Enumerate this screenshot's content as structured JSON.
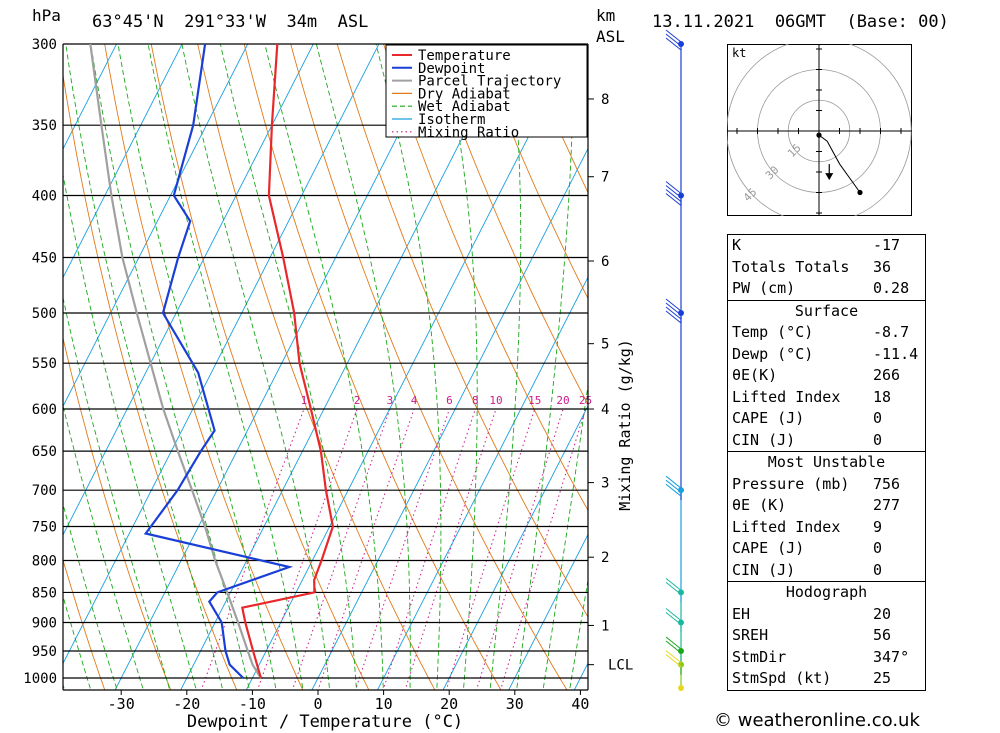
{
  "header": {
    "hpa_unit": "hPa",
    "location": "63°45'N  291°33'W  34m  ASL",
    "km_unit": "km",
    "asl_unit": "ASL",
    "datetime": "13.11.2021  06GMT  (Base: 00)"
  },
  "chart_data": {
    "type": "skew-t",
    "xlabel": "Dewpoint / Temperature (°C)",
    "right_axis_label": "Mixing Ratio (g/kg)",
    "pressure_levels": [
      300,
      350,
      400,
      450,
      500,
      550,
      600,
      650,
      700,
      750,
      800,
      850,
      900,
      950,
      1000
    ],
    "temperature_ticks": [
      -30,
      -20,
      -10,
      0,
      10,
      20,
      30,
      40
    ],
    "xlim": [
      -38,
      40
    ],
    "ylim_hpa": [
      1030,
      300
    ],
    "height_ticks_km": [
      {
        "label": "8",
        "p": 333
      },
      {
        "label": "7",
        "p": 386
      },
      {
        "label": "6",
        "p": 453
      },
      {
        "label": "5",
        "p": 530
      },
      {
        "label": "4",
        "p": 600
      },
      {
        "label": "3",
        "p": 690
      },
      {
        "label": "2",
        "p": 795
      },
      {
        "label": "1",
        "p": 905
      },
      {
        "label": "LCL",
        "p": 975
      }
    ],
    "mixing_ratio_labels": [
      "1",
      "2",
      "3",
      "4",
      "6",
      "8",
      "10",
      "15",
      "20",
      "25"
    ],
    "mixing_ratio_values": [
      1,
      2,
      3,
      4,
      6,
      8,
      10,
      15,
      20,
      25
    ],
    "legend": [
      "Temperature",
      "Dewpoint",
      "Parcel Trajectory",
      "Dry Adiabat",
      "Wet Adiabat",
      "Isotherm",
      "Mixing Ratio"
    ],
    "legend_position": "top-right",
    "colors": {
      "temperature": "#e8282a",
      "dewpoint": "#1a3fd6",
      "parcel": "#a0a0a0",
      "dry_adiabat": "#e07a1a",
      "wet_adiabat": "#1aa81a",
      "isotherm": "#1aa0e0",
      "mixing_ratio": "#cc1a8c"
    },
    "temperature_profile": [
      {
        "p": 1000,
        "t": -8.7
      },
      {
        "p": 950,
        "t": -12.0
      },
      {
        "p": 900,
        "t": -15.4
      },
      {
        "p": 875,
        "t": -17.0
      },
      {
        "p": 850,
        "t": -7.2
      },
      {
        "p": 830,
        "t": -8.2
      },
      {
        "p": 800,
        "t": -8.6
      },
      {
        "p": 750,
        "t": -9.5
      },
      {
        "p": 700,
        "t": -13.4
      },
      {
        "p": 650,
        "t": -17.2
      },
      {
        "p": 600,
        "t": -22.0
      },
      {
        "p": 550,
        "t": -27.3
      },
      {
        "p": 500,
        "t": -32.0
      },
      {
        "p": 450,
        "t": -38.0
      },
      {
        "p": 400,
        "t": -45.0
      },
      {
        "p": 350,
        "t": -50.0
      },
      {
        "p": 300,
        "t": -55.5
      }
    ],
    "dewpoint_profile": [
      {
        "p": 1000,
        "t": -11.4
      },
      {
        "p": 975,
        "t": -14.5
      },
      {
        "p": 950,
        "t": -16.2
      },
      {
        "p": 900,
        "t": -19.0
      },
      {
        "p": 865,
        "t": -22.5
      },
      {
        "p": 850,
        "t": -22.0
      },
      {
        "p": 810,
        "t": -13.0
      },
      {
        "p": 760,
        "t": -37.5
      },
      {
        "p": 700,
        "t": -36.0
      },
      {
        "p": 650,
        "t": -35.5
      },
      {
        "p": 625,
        "t": -35.0
      },
      {
        "p": 560,
        "t": -42.0
      },
      {
        "p": 500,
        "t": -52.0
      },
      {
        "p": 450,
        "t": -54.0
      },
      {
        "p": 420,
        "t": -55.0
      },
      {
        "p": 400,
        "t": -59.5
      },
      {
        "p": 350,
        "t": -62.0
      },
      {
        "p": 300,
        "t": -66.5
      }
    ],
    "parcel_profile": [
      {
        "p": 1000,
        "t": -8.7
      },
      {
        "p": 975,
        "t": -11.0
      },
      {
        "p": 950,
        "t": -12.8
      },
      {
        "p": 900,
        "t": -16.5
      },
      {
        "p": 850,
        "t": -20.5
      },
      {
        "p": 800,
        "t": -24.8
      },
      {
        "p": 750,
        "t": -29.0
      },
      {
        "p": 700,
        "t": -33.8
      },
      {
        "p": 650,
        "t": -39.0
      },
      {
        "p": 600,
        "t": -44.5
      },
      {
        "p": 550,
        "t": -50.0
      },
      {
        "p": 500,
        "t": -56.0
      },
      {
        "p": 450,
        "t": -62.5
      },
      {
        "p": 400,
        "t": -69.0
      },
      {
        "p": 350,
        "t": -76.0
      },
      {
        "p": 300,
        "t": -84.0
      }
    ],
    "wind_colors": [
      {
        "p": 1000,
        "c": "#e8d820"
      },
      {
        "p": 975,
        "c": "#8ac81a"
      },
      {
        "p": 950,
        "c": "#1aa81a"
      },
      {
        "p": 900,
        "c": "#1ab8a0"
      },
      {
        "p": 850,
        "c": "#1ab8a0"
      },
      {
        "p": 700,
        "c": "#1aa0e0"
      },
      {
        "p": 500,
        "c": "#1a3fd6"
      },
      {
        "p": 400,
        "c": "#1a3fd6"
      },
      {
        "p": 300,
        "c": "#1a3fd6"
      }
    ]
  },
  "hodograph": {
    "unit": "kt",
    "ring_labels": [
      "15",
      "30",
      "45"
    ],
    "points_kt": [
      [
        0,
        -2
      ],
      [
        4,
        -5
      ],
      [
        10,
        -16
      ],
      [
        20,
        -30
      ]
    ],
    "storm_motion_kt": [
      5,
      -22
    ]
  },
  "indices": {
    "rows": [
      {
        "k": "K",
        "v": "-17"
      },
      {
        "k": "Totals Totals",
        "v": "36"
      },
      {
        "k": "PW (cm)",
        "v": "0.28"
      }
    ]
  },
  "surface": {
    "title": "Surface",
    "rows": [
      {
        "k": "Temp (°C)",
        "v": "-8.7"
      },
      {
        "k": "Dewp (°C)",
        "v": "-11.4"
      },
      {
        "k": "θE(K)",
        "v": "266"
      },
      {
        "k": "Lifted Index",
        "v": "18"
      },
      {
        "k": "CAPE (J)",
        "v": "0"
      },
      {
        "k": "CIN (J)",
        "v": "0"
      }
    ]
  },
  "most_unstable": {
    "title": "Most Unstable",
    "rows": [
      {
        "k": "Pressure (mb)",
        "v": "756"
      },
      {
        "k": "θE (K)",
        "v": "277"
      },
      {
        "k": "Lifted Index",
        "v": "9"
      },
      {
        "k": "CAPE (J)",
        "v": "0"
      },
      {
        "k": "CIN (J)",
        "v": "0"
      }
    ]
  },
  "hodo_table": {
    "title": "Hodograph",
    "rows": [
      {
        "k": "EH",
        "v": "20"
      },
      {
        "k": "SREH",
        "v": "56"
      },
      {
        "k": "StmDir",
        "v": "347°"
      },
      {
        "k": "StmSpd (kt)",
        "v": "25"
      }
    ]
  },
  "credit": "© weatheronline.co.uk"
}
